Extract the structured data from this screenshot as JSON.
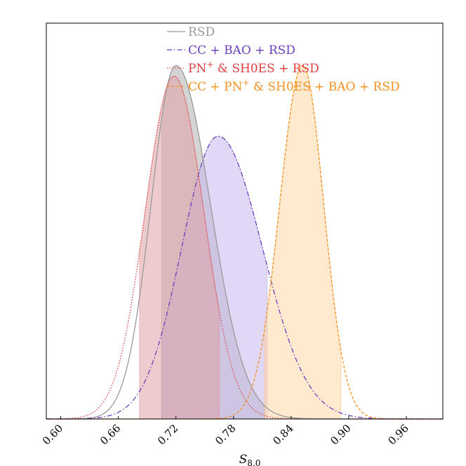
{
  "chart_data": {
    "type": "line",
    "title": "",
    "xlabel": "S_8,0",
    "ylabel": "",
    "xlim": [
      0.585,
      0.998
    ],
    "ylim": [
      0,
      1.12
    ],
    "xticks": [
      0.6,
      0.66,
      0.72,
      0.78,
      0.84,
      0.9,
      0.96
    ],
    "xtick_labels": [
      "0.60",
      "0.66",
      "0.72",
      "0.78",
      "0.84",
      "0.90",
      "0.96"
    ],
    "grid": false,
    "legend_position": "top-center",
    "series": [
      {
        "name": "RSD",
        "color": "#999999",
        "line_style": "solid",
        "fill_color": "#b0b0b0",
        "peak_x": 0.72,
        "peak_y": 1.0,
        "sigma_left": 0.026,
        "sigma_right": 0.036,
        "band": [
          0.705,
          0.813
        ]
      },
      {
        "name": "CC + BAO + RSD",
        "color": "#6a3fc0",
        "line_style": "dashdot",
        "fill_color": "#c8b8ec",
        "peak_x": 0.764,
        "peak_y": 0.8,
        "sigma_left": 0.038,
        "sigma_right": 0.046,
        "band": [
          0.705,
          0.815
        ]
      },
      {
        "name": "PN",
        "name_sup": "+",
        "name_rest": " & SH0ES + RSD",
        "color": "#e04040",
        "line_style": "dotted",
        "fill_color": "#e0a0a4",
        "peak_x": 0.718,
        "peak_y": 0.97,
        "sigma_left": 0.03,
        "sigma_right": 0.031,
        "band": [
          0.682,
          0.765
        ]
      },
      {
        "name": "CC + PN",
        "name_sup": "+",
        "name_rest": " & SH0ES + BAO + RSD",
        "color": "#f5901e",
        "line_style": "dashed",
        "fill_color": "#ffd8a8",
        "peak_x": 0.852,
        "peak_y": 1.0,
        "sigma_left": 0.024,
        "sigma_right": 0.022,
        "band": [
          0.812,
          0.892
        ]
      }
    ]
  }
}
